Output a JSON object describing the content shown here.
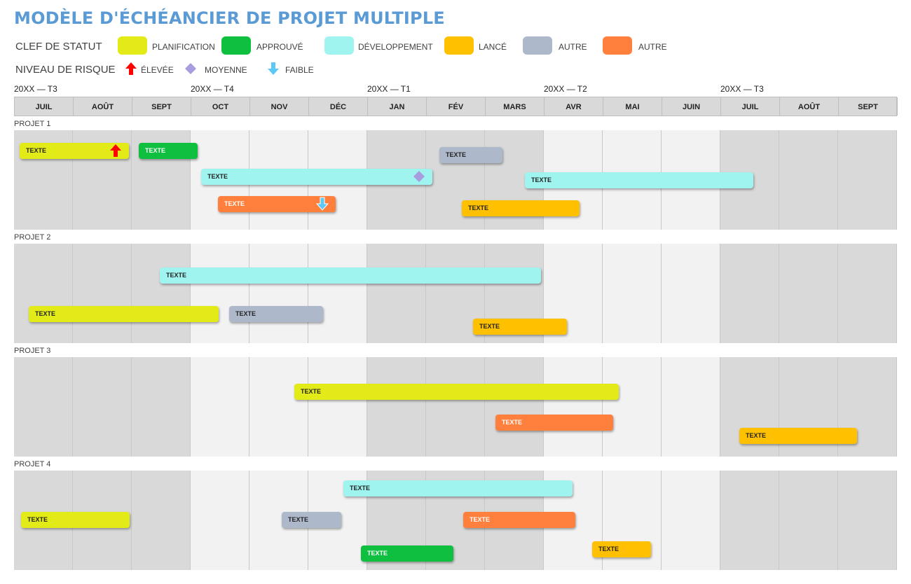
{
  "title": "MODÈLE D'ÉCHÉANCIER DE PROJET MULTIPLE",
  "status_key": {
    "label": "CLEF DE STATUT",
    "items": [
      {
        "label": "PLANIFICATION",
        "color": "#E2EA17"
      },
      {
        "label": "APPROUVÉ",
        "color": "#0FBF3F"
      },
      {
        "label": "DÉVELOPPEMENT",
        "color": "#A0F4EF"
      },
      {
        "label": "LANCÉ",
        "color": "#FFC000"
      },
      {
        "label": "AUTRE",
        "color": "#ADB9CA"
      },
      {
        "label": "AUTRE",
        "color": "#FF803C"
      }
    ]
  },
  "risk_key": {
    "label": "NIVEAU DE RISQUE",
    "items": [
      {
        "label": "ÉLEVÉE",
        "icon": "red-up-arrow-icon",
        "color": "#FF0000"
      },
      {
        "label": "MOYENNE",
        "icon": "purple-diamond-icon",
        "color": "#A79EE0"
      },
      {
        "label": "FAIBLE",
        "icon": "blue-down-arrow-icon",
        "color": "#5BC8F5"
      }
    ]
  },
  "quarters": [
    "20XX — T3",
    "20XX — T4",
    "20XX — T1",
    "20XX — T2",
    "20XX — T3"
  ],
  "months": [
    "JUIL",
    "AOÛT",
    "SEPT",
    "OCT",
    "NOV",
    "DÉC",
    "JAN",
    "FÉV",
    "MARS",
    "AVR",
    "MAI",
    "JUIN",
    "JUIL",
    "AOÛT",
    "SEPT"
  ],
  "projects": [
    {
      "name": "PROJET 1",
      "tasks": [
        {
          "label": "TEXTE",
          "status": 0,
          "risk": 0
        },
        {
          "label": "TEXTE",
          "status": 1
        },
        {
          "label": "TEXTE",
          "status": 4
        },
        {
          "label": "TEXTE",
          "status": 2,
          "risk": 1
        },
        {
          "label": "TEXTE",
          "status": 2
        },
        {
          "label": "TEXTE",
          "status": 5,
          "risk": 2
        },
        {
          "label": "TEXTE",
          "status": 3
        }
      ]
    },
    {
      "name": "PROJET 2",
      "tasks": [
        {
          "label": "TEXTE",
          "status": 2
        },
        {
          "label": "TEXTE",
          "status": 0
        },
        {
          "label": "TEXTE",
          "status": 4
        },
        {
          "label": "TEXTE",
          "status": 3
        }
      ]
    },
    {
      "name": "PROJET 3",
      "tasks": [
        {
          "label": "TEXTE",
          "status": 0
        },
        {
          "label": "TEXTE",
          "status": 5
        },
        {
          "label": "TEXTE",
          "status": 3
        }
      ]
    },
    {
      "name": "PROJET 4",
      "tasks": [
        {
          "label": "TEXTE",
          "status": 2
        },
        {
          "label": "TEXTE",
          "status": 0
        },
        {
          "label": "TEXTE",
          "status": 4
        },
        {
          "label": "TEXTE",
          "status": 5
        },
        {
          "label": "TEXTE",
          "status": 1
        },
        {
          "label": "TEXTE",
          "status": 3
        }
      ]
    }
  ]
}
